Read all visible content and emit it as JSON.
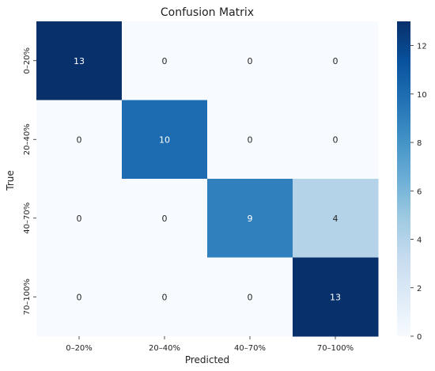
{
  "chart_data": {
    "type": "heatmap",
    "title": "Confusion Matrix",
    "xlabel": "Predicted",
    "ylabel": "True",
    "x_categories": [
      "0–20%",
      "20–40%",
      "40–70%",
      "70–100%"
    ],
    "y_categories": [
      "0–20%",
      "20–40%",
      "40–70%",
      "70–100%"
    ],
    "values": [
      [
        13,
        0,
        0,
        0
      ],
      [
        0,
        10,
        0,
        0
      ],
      [
        0,
        0,
        9,
        4
      ],
      [
        0,
        0,
        0,
        13
      ]
    ],
    "colorbar": {
      "range": [
        0,
        13
      ],
      "ticks": [
        0,
        2,
        4,
        6,
        8,
        10,
        12
      ],
      "colormap": "Blues"
    },
    "grid": false
  }
}
